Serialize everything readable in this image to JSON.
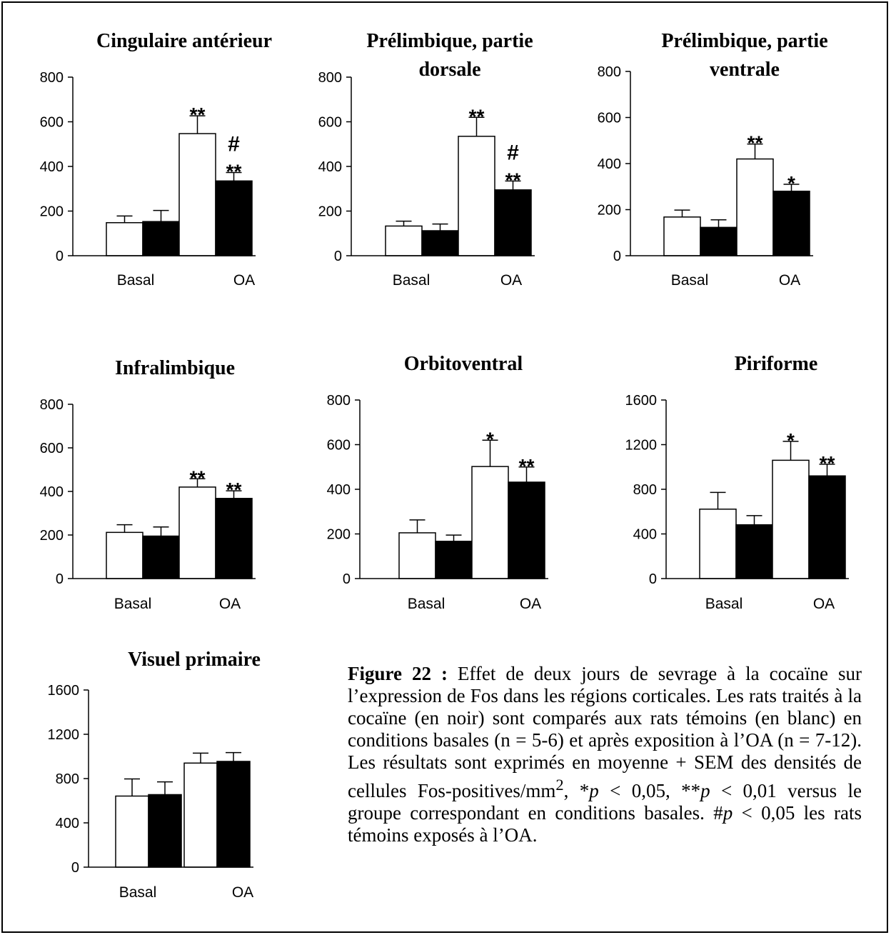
{
  "chart_data": [
    {
      "type": "bar",
      "title": [
        "Cingulaire antérieur"
      ],
      "categories": [
        "Basal",
        "OA"
      ],
      "ylim": [
        0,
        800
      ],
      "yticks": [
        "0",
        "200",
        "400",
        "600",
        "800"
      ],
      "series": [
        {
          "color": "#ffffff",
          "values": [
            148,
            547
          ],
          "errors": [
            30,
            80
          ]
        },
        {
          "color": "#000000",
          "values": [
            153,
            335
          ],
          "errors": [
            50,
            38
          ]
        }
      ],
      "annotations": [
        {
          "category": 1,
          "series": 0,
          "marks": [
            "**"
          ]
        },
        {
          "category": 1,
          "series": 1,
          "marks": [
            "#",
            "**"
          ]
        }
      ]
    },
    {
      "type": "bar",
      "title": [
        "Prélimbique, partie",
        "dorsale"
      ],
      "categories": [
        "Basal",
        "OA"
      ],
      "ylim": [
        0,
        800
      ],
      "yticks": [
        "0",
        "200",
        "400",
        "600",
        "800"
      ],
      "series": [
        {
          "color": "#ffffff",
          "values": [
            133,
            535
          ],
          "errors": [
            22,
            85
          ]
        },
        {
          "color": "#000000",
          "values": [
            112,
            295
          ],
          "errors": [
            30,
            40
          ]
        }
      ],
      "annotations": [
        {
          "category": 1,
          "series": 0,
          "marks": [
            "**"
          ]
        },
        {
          "category": 1,
          "series": 1,
          "marks": [
            "#",
            "**"
          ]
        }
      ]
    },
    {
      "type": "bar",
      "title": [
        "Prélimbique, partie",
        "ventrale"
      ],
      "categories": [
        "Basal",
        "OA"
      ],
      "ylim": [
        0,
        800
      ],
      "yticks": [
        "0",
        "200",
        "400",
        "600",
        "800"
      ],
      "series": [
        {
          "color": "#ffffff",
          "values": [
            168,
            420
          ],
          "errors": [
            30,
            65
          ]
        },
        {
          "color": "#000000",
          "values": [
            123,
            280
          ],
          "errors": [
            33,
            30
          ]
        }
      ],
      "annotations": [
        {
          "category": 1,
          "series": 0,
          "marks": [
            "**"
          ]
        },
        {
          "category": 1,
          "series": 1,
          "marks": [
            "*"
          ]
        }
      ]
    },
    {
      "type": "bar",
      "title": [
        "Infralimbique"
      ],
      "categories": [
        "Basal",
        "OA"
      ],
      "ylim": [
        0,
        800
      ],
      "yticks": [
        "0",
        "200",
        "400",
        "600",
        "800"
      ],
      "series": [
        {
          "color": "#ffffff",
          "values": [
            212,
            420
          ],
          "errors": [
            35,
            38
          ]
        },
        {
          "color": "#000000",
          "values": [
            195,
            368
          ],
          "errors": [
            42,
            35
          ]
        }
      ],
      "annotations": [
        {
          "category": 1,
          "series": 0,
          "marks": [
            "**"
          ]
        },
        {
          "category": 1,
          "series": 1,
          "marks": [
            "**"
          ]
        }
      ]
    },
    {
      "type": "bar",
      "title": [
        "Orbitoventral"
      ],
      "categories": [
        "Basal",
        "OA"
      ],
      "ylim": [
        0,
        800
      ],
      "yticks": [
        "0",
        "200",
        "400",
        "600",
        "800"
      ],
      "series": [
        {
          "color": "#ffffff",
          "values": [
            205,
            502
          ],
          "errors": [
            58,
            118
          ]
        },
        {
          "color": "#000000",
          "values": [
            167,
            432
          ],
          "errors": [
            28,
            68
          ]
        }
      ],
      "annotations": [
        {
          "category": 1,
          "series": 0,
          "marks": [
            "*"
          ]
        },
        {
          "category": 1,
          "series": 1,
          "marks": [
            "**"
          ]
        }
      ]
    },
    {
      "type": "bar",
      "title": [
        "Piriforme"
      ],
      "categories": [
        "Basal",
        "OA"
      ],
      "ylim": [
        0,
        1600
      ],
      "yticks": [
        "0",
        "400",
        "800",
        "1200",
        "1600"
      ],
      "series": [
        {
          "color": "#ffffff",
          "values": [
            622,
            1060
          ],
          "errors": [
            150,
            170
          ]
        },
        {
          "color": "#000000",
          "values": [
            482,
            920
          ],
          "errors": [
            82,
            105
          ]
        }
      ],
      "annotations": [
        {
          "category": 1,
          "series": 0,
          "marks": [
            "*"
          ]
        },
        {
          "category": 1,
          "series": 1,
          "marks": [
            "**"
          ]
        }
      ]
    },
    {
      "type": "bar",
      "title": [
        "Visuel primaire"
      ],
      "categories": [
        "Basal",
        "OA"
      ],
      "ylim": [
        0,
        1600
      ],
      "yticks": [
        "0",
        "400",
        "800",
        "1200",
        "1600"
      ],
      "series": [
        {
          "color": "#ffffff",
          "values": [
            642,
            940
          ],
          "errors": [
            155,
            90
          ]
        },
        {
          "color": "#000000",
          "values": [
            655,
            955
          ],
          "errors": [
            115,
            80
          ]
        }
      ],
      "annotations": []
    }
  ],
  "caption": {
    "figure_label": "Figure 22 :",
    "part1": " Effet de deux jours de sevrage à la cocaïne sur l’expression de Fos dans les régions corticales. Les rats traités à la cocaïne (en noir) sont comparés aux rats témoins (en blanc) en conditions basales (n = 5-6) et après exposition à l’OA (n = 7-12). Les résultats sont exprimés en moyenne + SEM des densités de cellules Fos-positives/mm",
    "superscript": "2",
    "part2": ", *",
    "p1": "p",
    "part3": " < 0,05, **",
    "p2": "p",
    "part4": " < 0,01 versus le groupe correspondant en conditions basales. #",
    "p3": "p",
    "part5": " < 0,05 les rats témoins exposés à l’OA."
  }
}
